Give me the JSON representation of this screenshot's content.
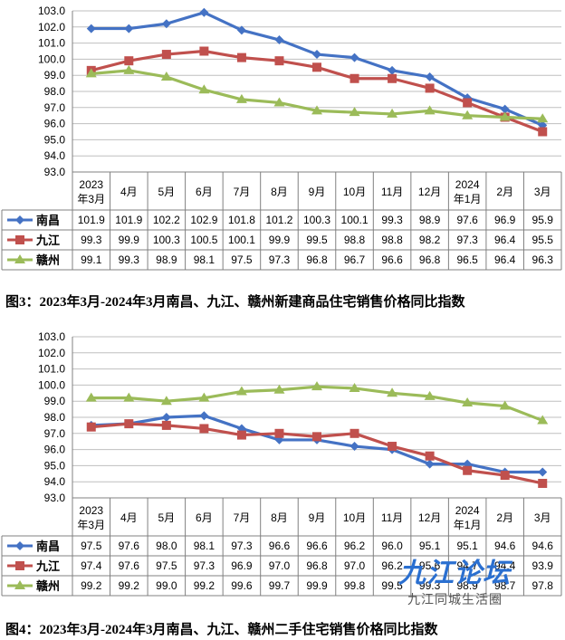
{
  "chart_data": [
    {
      "type": "line",
      "title": "图3：2023年3月-2024年3月南昌、九江、赣州新建商品住宅销售价格同比指数",
      "categories": [
        "2023年3月",
        "4月",
        "5月",
        "6月",
        "7月",
        "8月",
        "9月",
        "10月",
        "11月",
        "12月",
        "2024年1月",
        "2月",
        "3月"
      ],
      "series": [
        {
          "name": "南昌",
          "values": [
            101.9,
            101.9,
            102.2,
            102.9,
            101.8,
            101.2,
            100.3,
            100.1,
            99.3,
            98.9,
            97.6,
            96.9,
            95.9
          ]
        },
        {
          "name": "九江",
          "values": [
            99.3,
            99.9,
            100.3,
            100.5,
            100.1,
            99.9,
            99.5,
            98.8,
            98.8,
            98.2,
            97.3,
            96.4,
            95.5
          ]
        },
        {
          "name": "赣州",
          "values": [
            99.1,
            99.3,
            98.9,
            98.1,
            97.5,
            97.3,
            96.8,
            96.7,
            96.6,
            96.8,
            96.5,
            96.4,
            96.3
          ]
        }
      ],
      "ylim": [
        93.0,
        103.0
      ],
      "yticks": [
        "93.0",
        "94.0",
        "95.0",
        "96.0",
        "97.0",
        "98.0",
        "99.0",
        "100.0",
        "101.0",
        "102.0",
        "103.0"
      ],
      "legend": "data-table"
    },
    {
      "type": "line",
      "title": "图4：2023年3月-2024年3月南昌、九江、赣州二手住宅销售价格同比指数",
      "categories": [
        "2023年3月",
        "4月",
        "5月",
        "6月",
        "7月",
        "8月",
        "9月",
        "10月",
        "11月",
        "12月",
        "2024年1月",
        "2月",
        "3月"
      ],
      "series": [
        {
          "name": "南昌",
          "values": [
            97.5,
            97.6,
            98.0,
            98.1,
            97.3,
            96.6,
            96.6,
            96.2,
            96.0,
            95.1,
            95.1,
            94.6,
            94.6
          ]
        },
        {
          "name": "九江",
          "values": [
            97.4,
            97.6,
            97.5,
            97.3,
            96.9,
            97.0,
            96.8,
            97.0,
            96.2,
            95.6,
            94.7,
            94.4,
            93.9
          ]
        },
        {
          "name": "赣州",
          "values": [
            99.2,
            99.2,
            99.0,
            99.2,
            99.6,
            99.7,
            99.9,
            99.8,
            99.5,
            99.3,
            98.9,
            98.7,
            97.8
          ]
        }
      ],
      "ylim": [
        93.0,
        103.0
      ],
      "yticks": [
        "93.0",
        "94.0",
        "95.0",
        "96.0",
        "97.0",
        "98.0",
        "99.0",
        "100.0",
        "101.0",
        "102.0",
        "103.0"
      ],
      "legend": "data-table"
    }
  ],
  "series_colors": [
    "#4472c4",
    "#c0504d",
    "#9bbb59"
  ],
  "series_markers": [
    "diamond",
    "square",
    "triangle"
  ],
  "watermark": {
    "logo": "九江论坛",
    "sub": "九江同城生活圈"
  }
}
